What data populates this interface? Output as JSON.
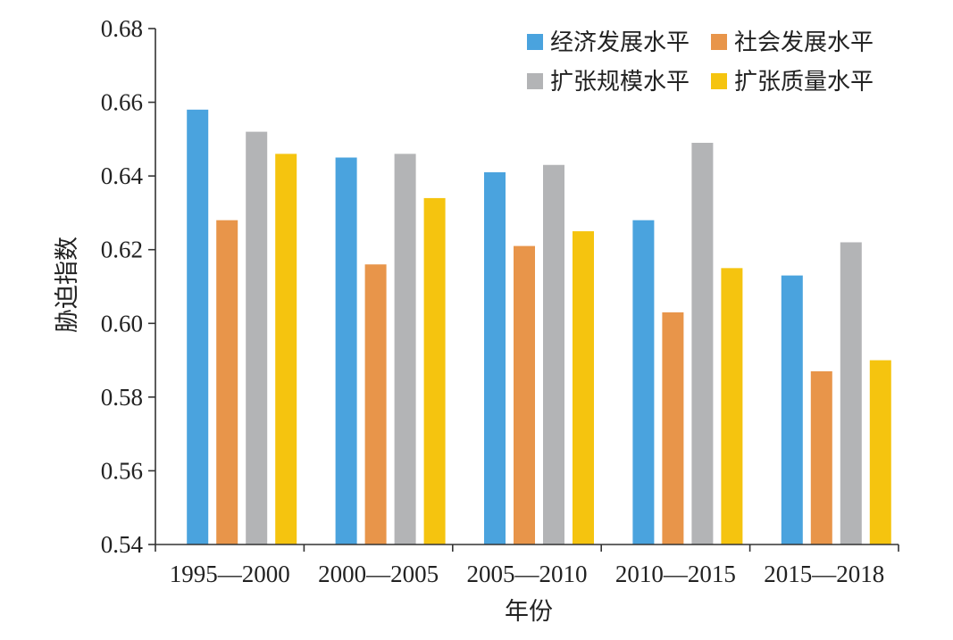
{
  "chart_data": {
    "type": "bar",
    "title": "",
    "xlabel": "年份",
    "ylabel": "胁迫指数",
    "categories": [
      "1995—2000",
      "2000—2005",
      "2005—2010",
      "2010—2015",
      "2015—2018"
    ],
    "series": [
      {
        "name": "经济发展水平",
        "color": "#4aa3de",
        "values": [
          0.658,
          0.645,
          0.641,
          0.628,
          0.613
        ]
      },
      {
        "name": "社会发展水平",
        "color": "#e8954a",
        "values": [
          0.628,
          0.616,
          0.621,
          0.603,
          0.587
        ]
      },
      {
        "name": "扩张规模水平",
        "color": "#b3b4b6",
        "values": [
          0.652,
          0.646,
          0.643,
          0.649,
          0.622
        ]
      },
      {
        "name": "扩张质量水平",
        "color": "#f5c40f",
        "values": [
          0.646,
          0.634,
          0.625,
          0.615,
          0.59
        ]
      }
    ],
    "ylim": [
      0.54,
      0.68
    ],
    "yticks": [
      "0.54",
      "0.56",
      "0.58",
      "0.60",
      "0.62",
      "0.64",
      "0.66",
      "0.68"
    ],
    "grid": false,
    "legend_position": "top-right"
  }
}
